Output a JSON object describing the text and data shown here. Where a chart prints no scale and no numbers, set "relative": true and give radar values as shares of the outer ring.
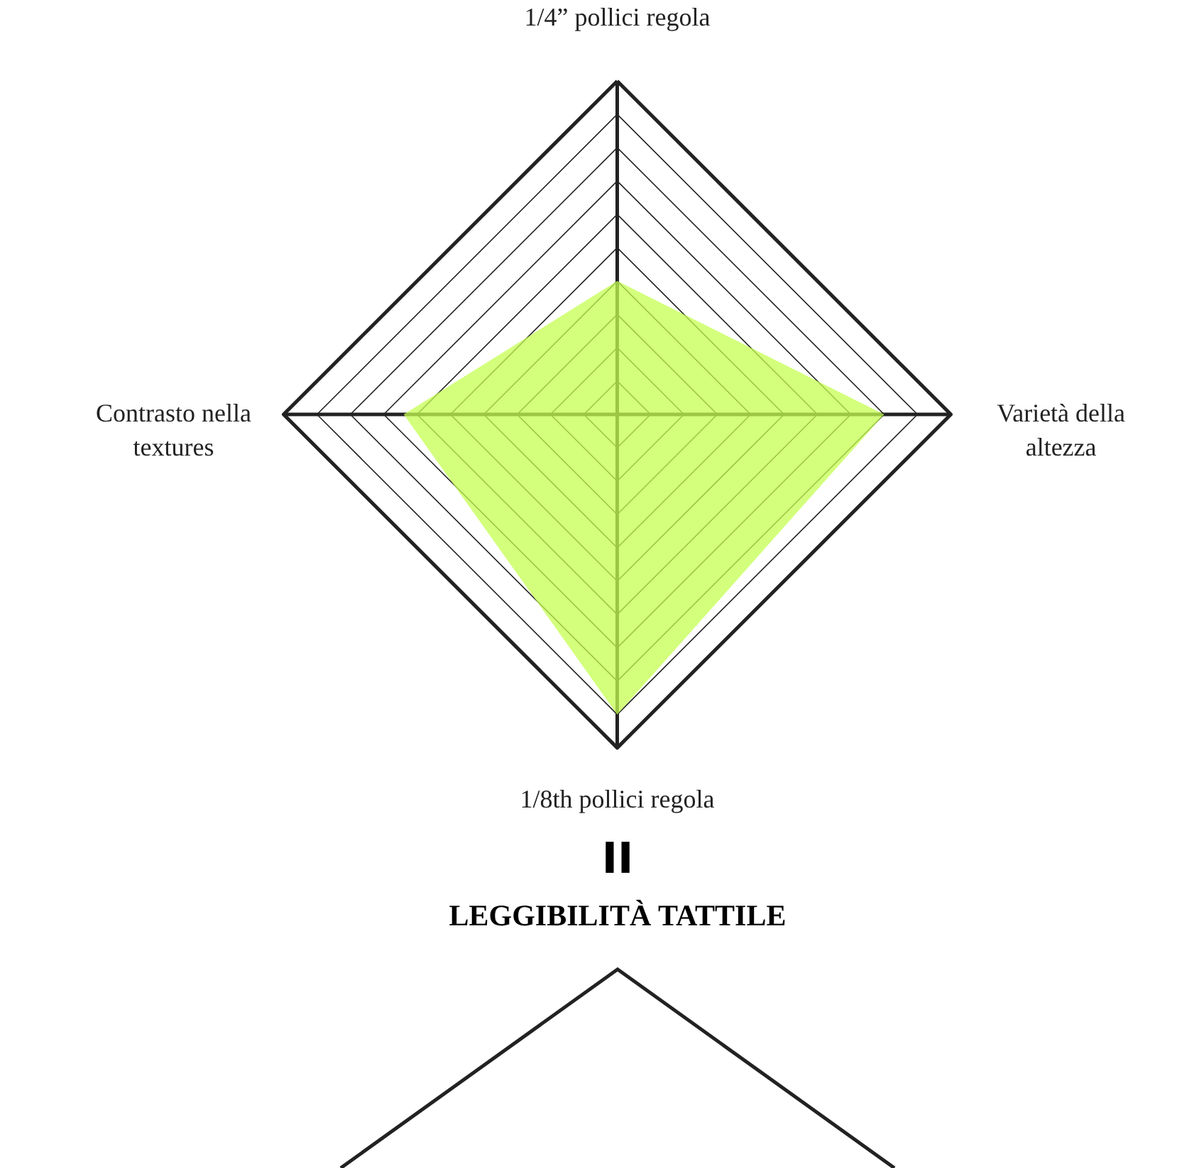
{
  "chart_data": {
    "type": "radar",
    "relative": true,
    "categories": [
      "1/4” pollici regola",
      "Varietà della\naltezza",
      "1/8th pollici regola",
      "Contrasto nella\ntextures"
    ],
    "series": [
      {
        "color": "#c4ff50",
        "values": [
          0.4,
          0.8,
          0.9,
          0.64
        ]
      }
    ],
    "annotations": [
      "II",
      "LEGGIBILITÀ TATTILE"
    ]
  }
}
